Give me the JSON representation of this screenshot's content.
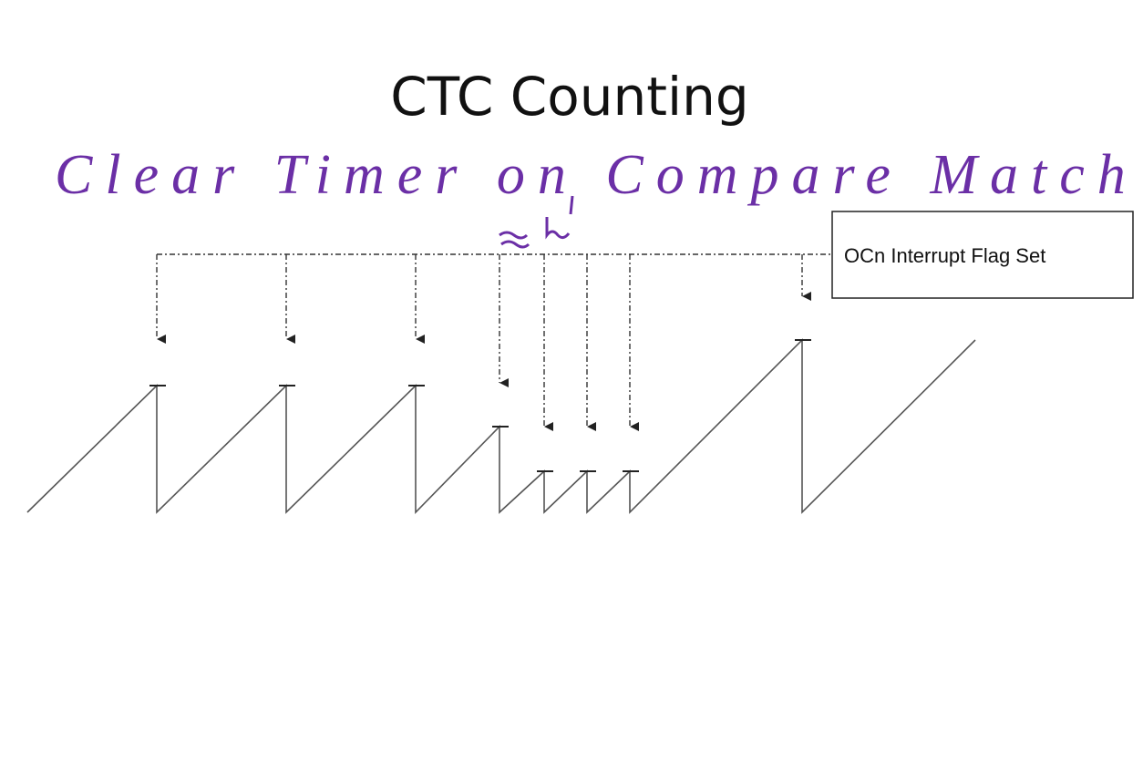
{
  "header": {
    "title": "CTC Counting",
    "annotation": "Clear Timer on Compare Match"
  },
  "diagram": {
    "box_label": "OCn Interrupt Flag Set"
  }
}
